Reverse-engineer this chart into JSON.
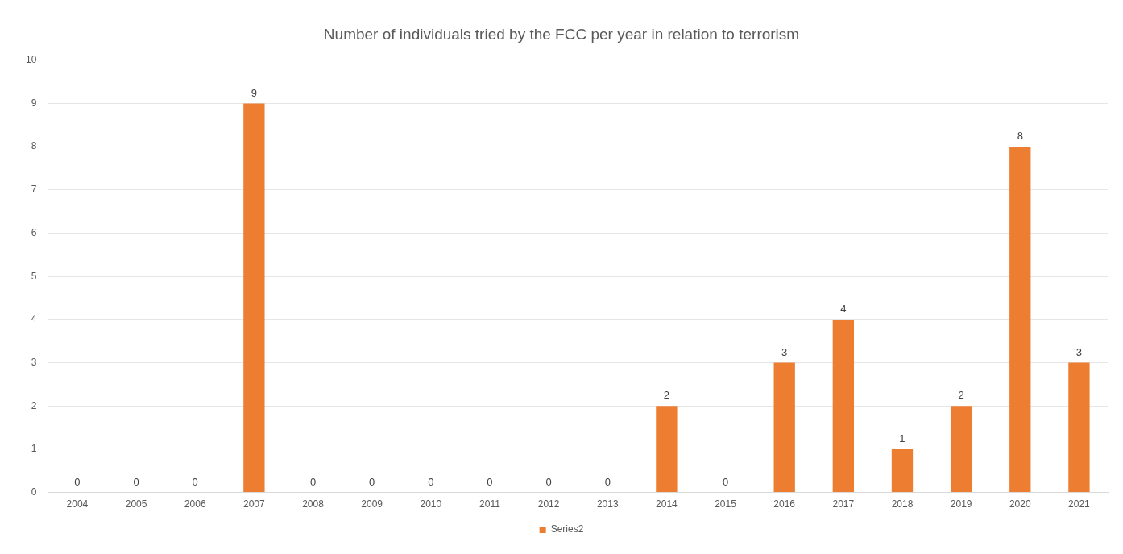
{
  "chart_data": {
    "type": "bar",
    "title": "Number of individuals tried by the FCC per year in relation to terrorism",
    "categories": [
      "2004",
      "2005",
      "2006",
      "2007",
      "2008",
      "2009",
      "2010",
      "2011",
      "2012",
      "2013",
      "2014",
      "2015",
      "2016",
      "2017",
      "2018",
      "2019",
      "2020",
      "2021"
    ],
    "series": [
      {
        "name": "Series2",
        "color": "#ed7d31",
        "values": [
          0,
          0,
          0,
          9,
          0,
          0,
          0,
          0,
          0,
          0,
          2,
          0,
          3,
          4,
          1,
          2,
          8,
          3
        ]
      }
    ],
    "ylim": [
      0,
      10
    ],
    "yticks": [
      0,
      1,
      2,
      3,
      4,
      5,
      6,
      7,
      8,
      9,
      10
    ],
    "grid": "y",
    "legend": "bottom",
    "data_labels": true
  }
}
